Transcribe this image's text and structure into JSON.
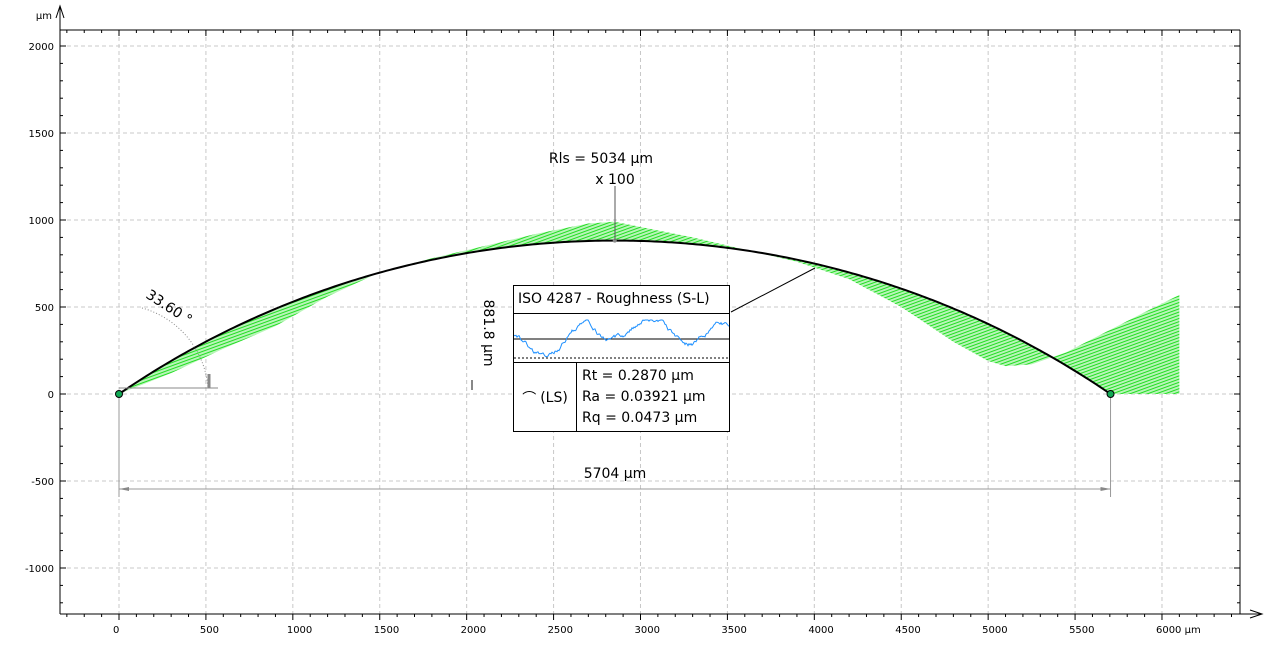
{
  "chart_data": {
    "type": "line",
    "title": "",
    "xlabel": "µm",
    "ylabel": "µm",
    "xlim": [
      -340,
      6440
    ],
    "ylim": [
      -1270,
      2100
    ],
    "x_ticks": [
      0,
      500,
      1000,
      1500,
      2000,
      2500,
      3000,
      3500,
      4000,
      4500,
      5000,
      5500,
      6000
    ],
    "x_tick_labels": [
      "0",
      "500",
      "1000",
      "1500",
      "2000",
      "2500",
      "3000",
      "3500",
      "4000",
      "4500",
      "5000",
      "5500",
      "6000 µm"
    ],
    "y_ticks": [
      2000,
      1500,
      1000,
      500,
      0,
      -500,
      -1000
    ],
    "y_tick_labels": [
      "2000",
      "1500",
      "1000",
      "500",
      "0",
      "-500",
      "-1000"
    ],
    "y_unit_label": "µm",
    "grid": true,
    "fitted_arc": {
      "x_start": 0,
      "x_end": 5704,
      "height": 881.8
    },
    "profile": {
      "x": [
        0,
        300,
        600,
        900,
        1200,
        1500,
        1800,
        2100,
        2400,
        2700,
        2850,
        3000,
        3300,
        3600,
        3900,
        4200,
        4500,
        4800,
        5000,
        5100,
        5250,
        5450,
        5704,
        5900,
        6100
      ],
      "y": [
        0,
        120,
        260,
        390,
        560,
        700,
        780,
        850,
        920,
        980,
        990,
        960,
        900,
        830,
        760,
        660,
        500,
        300,
        190,
        160,
        170,
        240,
        370,
        470,
        570
      ]
    },
    "annotations": {
      "radius": "Rls = 5034 µm",
      "magnification": "x 100",
      "angle": "33.60 °",
      "height": "881.8 µm",
      "width": "5704 µm"
    },
    "callout": {
      "title": "ISO 4287 - Roughness (S-L)",
      "filter": "(LS)",
      "values": [
        "Rt = 0.2870 µm",
        "Ra = 0.03921 µm",
        "Rq = 0.0473 µm"
      ]
    },
    "colors": {
      "deviation": "#22dd22",
      "roughness": "#1e90ff",
      "arc": "#000000"
    }
  }
}
